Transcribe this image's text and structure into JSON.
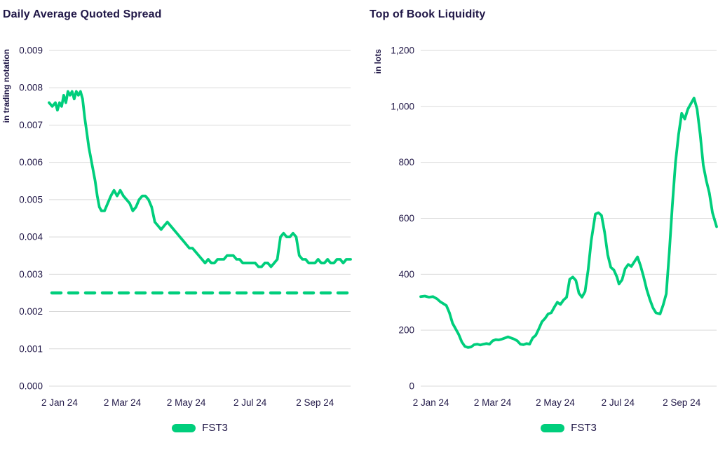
{
  "colors": {
    "series": "#00CE7C",
    "title": "#201747",
    "axis_text": "#201747",
    "grid": "#D9D9D9",
    "background": "#FFFFFF"
  },
  "chart_data": [
    {
      "type": "line",
      "title": "Daily Average Quoted Spread",
      "ylabel": "in trading notation",
      "xlabel": "",
      "legend_label": "FST3",
      "legend_position": "bottom",
      "grid": true,
      "ylim": [
        0,
        0.009
      ],
      "yticks": [
        0,
        0.001,
        0.002,
        0.003,
        0.004,
        0.005,
        0.006,
        0.007,
        0.008,
        0.009
      ],
      "ytick_labels": [
        "0.000",
        "0.001",
        "0.002",
        "0.003",
        "0.004",
        "0.005",
        "0.006",
        "0.007",
        "0.008",
        "0.009"
      ],
      "xlim": [
        0,
        288
      ],
      "xticks": [
        10,
        70,
        131,
        192,
        254
      ],
      "xtick_labels": [
        "2 Jan 24",
        "2 Mar 24",
        "2 May 24",
        "2 Jul 24",
        "2 Sep 24"
      ],
      "reference_line": {
        "value": 0.0025,
        "style": "dashed"
      },
      "series": [
        {
          "name": "FST3",
          "points": [
            [
              0,
              0.0076
            ],
            [
              3,
              0.0075
            ],
            [
              6,
              0.0076
            ],
            [
              8,
              0.0074
            ],
            [
              10,
              0.0076
            ],
            [
              12,
              0.0075
            ],
            [
              14,
              0.0078
            ],
            [
              16,
              0.0076
            ],
            [
              18,
              0.0079
            ],
            [
              20,
              0.0078
            ],
            [
              22,
              0.0079
            ],
            [
              24,
              0.0077
            ],
            [
              26,
              0.0079
            ],
            [
              28,
              0.0078
            ],
            [
              30,
              0.0079
            ],
            [
              32,
              0.0077
            ],
            [
              34,
              0.0072
            ],
            [
              36,
              0.0068
            ],
            [
              38,
              0.0064
            ],
            [
              40,
              0.0061
            ],
            [
              42,
              0.0058
            ],
            [
              44,
              0.0055
            ],
            [
              46,
              0.0051
            ],
            [
              48,
              0.0048
            ],
            [
              50,
              0.0047
            ],
            [
              53,
              0.0047
            ],
            [
              56,
              0.0049
            ],
            [
              59,
              0.0051
            ],
            [
              62,
              0.00525
            ],
            [
              65,
              0.0051
            ],
            [
              68,
              0.00525
            ],
            [
              71,
              0.0051
            ],
            [
              74,
              0.005
            ],
            [
              77,
              0.0049
            ],
            [
              80,
              0.0047
            ],
            [
              83,
              0.0048
            ],
            [
              86,
              0.005
            ],
            [
              89,
              0.0051
            ],
            [
              92,
              0.0051
            ],
            [
              95,
              0.005
            ],
            [
              98,
              0.0048
            ],
            [
              101,
              0.0044
            ],
            [
              104,
              0.0043
            ],
            [
              107,
              0.0042
            ],
            [
              110,
              0.0043
            ],
            [
              113,
              0.0044
            ],
            [
              116,
              0.0043
            ],
            [
              119,
              0.0042
            ],
            [
              122,
              0.0041
            ],
            [
              125,
              0.004
            ],
            [
              128,
              0.0039
            ],
            [
              131,
              0.0038
            ],
            [
              134,
              0.0037
            ],
            [
              137,
              0.0037
            ],
            [
              140,
              0.0036
            ],
            [
              143,
              0.0035
            ],
            [
              146,
              0.0034
            ],
            [
              149,
              0.0033
            ],
            [
              152,
              0.0034
            ],
            [
              155,
              0.0033
            ],
            [
              158,
              0.0033
            ],
            [
              161,
              0.0034
            ],
            [
              164,
              0.0034
            ],
            [
              167,
              0.0034
            ],
            [
              170,
              0.0035
            ],
            [
              173,
              0.0035
            ],
            [
              176,
              0.0035
            ],
            [
              179,
              0.0034
            ],
            [
              182,
              0.0034
            ],
            [
              185,
              0.0033
            ],
            [
              188,
              0.0033
            ],
            [
              191,
              0.0033
            ],
            [
              194,
              0.0033
            ],
            [
              197,
              0.0033
            ],
            [
              200,
              0.0032
            ],
            [
              203,
              0.0032
            ],
            [
              206,
              0.0033
            ],
            [
              209,
              0.0033
            ],
            [
              212,
              0.0032
            ],
            [
              215,
              0.0033
            ],
            [
              218,
              0.0034
            ],
            [
              221,
              0.004
            ],
            [
              224,
              0.0041
            ],
            [
              227,
              0.004
            ],
            [
              230,
              0.004
            ],
            [
              233,
              0.0041
            ],
            [
              236,
              0.004
            ],
            [
              239,
              0.0035
            ],
            [
              242,
              0.0034
            ],
            [
              245,
              0.0034
            ],
            [
              248,
              0.0033
            ],
            [
              251,
              0.0033
            ],
            [
              254,
              0.0033
            ],
            [
              257,
              0.0034
            ],
            [
              260,
              0.0033
            ],
            [
              263,
              0.0033
            ],
            [
              266,
              0.0034
            ],
            [
              269,
              0.0033
            ],
            [
              272,
              0.0033
            ],
            [
              275,
              0.0034
            ],
            [
              278,
              0.0034
            ],
            [
              281,
              0.0033
            ],
            [
              284,
              0.0034
            ],
            [
              288,
              0.0034
            ]
          ]
        }
      ]
    },
    {
      "type": "line",
      "title": "Top of Book Liquidity",
      "ylabel": "in lots",
      "xlabel": "",
      "legend_label": "FST3",
      "legend_position": "bottom",
      "grid": true,
      "ylim": [
        0,
        1200
      ],
      "yticks": [
        0,
        200,
        400,
        600,
        800,
        1000,
        1200
      ],
      "ytick_labels": [
        "0",
        "200",
        "400",
        "600",
        "800",
        "1,000",
        "1,200"
      ],
      "xlim": [
        0,
        288
      ],
      "xticks": [
        10,
        70,
        131,
        192,
        254
      ],
      "xtick_labels": [
        "2 Jan 24",
        "2 Mar 24",
        "2 May 24",
        "2 Jul 24",
        "2 Sep 24"
      ],
      "series": [
        {
          "name": "FST3",
          "points": [
            [
              0,
              320
            ],
            [
              4,
              322
            ],
            [
              8,
              318
            ],
            [
              12,
              320
            ],
            [
              16,
              312
            ],
            [
              19,
              302
            ],
            [
              22,
              295
            ],
            [
              25,
              288
            ],
            [
              28,
              262
            ],
            [
              31,
              225
            ],
            [
              34,
              205
            ],
            [
              37,
              185
            ],
            [
              40,
              158
            ],
            [
              43,
              142
            ],
            [
              46,
              138
            ],
            [
              49,
              140
            ],
            [
              52,
              148
            ],
            [
              55,
              150
            ],
            [
              58,
              147
            ],
            [
              61,
              150
            ],
            [
              64,
              152
            ],
            [
              67,
              150
            ],
            [
              70,
              162
            ],
            [
              73,
              166
            ],
            [
              76,
              165
            ],
            [
              79,
              168
            ],
            [
              82,
              172
            ],
            [
              85,
              176
            ],
            [
              88,
              172
            ],
            [
              91,
              168
            ],
            [
              94,
              162
            ],
            [
              97,
              150
            ],
            [
              100,
              148
            ],
            [
              103,
              152
            ],
            [
              106,
              150
            ],
            [
              109,
              172
            ],
            [
              112,
              182
            ],
            [
              115,
              205
            ],
            [
              118,
              230
            ],
            [
              121,
              242
            ],
            [
              124,
              258
            ],
            [
              127,
              262
            ],
            [
              130,
              282
            ],
            [
              133,
              300
            ],
            [
              136,
              292
            ],
            [
              139,
              308
            ],
            [
              142,
              318
            ],
            [
              145,
              382
            ],
            [
              148,
              390
            ],
            [
              151,
              378
            ],
            [
              154,
              332
            ],
            [
              157,
              318
            ],
            [
              160,
              338
            ],
            [
              163,
              415
            ],
            [
              166,
              520
            ],
            [
              170,
              615
            ],
            [
              173,
              620
            ],
            [
              176,
              610
            ],
            [
              179,
              550
            ],
            [
              182,
              470
            ],
            [
              185,
              425
            ],
            [
              188,
              415
            ],
            [
              191,
              390
            ],
            [
              193,
              365
            ],
            [
              196,
              380
            ],
            [
              199,
              420
            ],
            [
              202,
              435
            ],
            [
              205,
              428
            ],
            [
              208,
              445
            ],
            [
              211,
              462
            ],
            [
              214,
              430
            ],
            [
              217,
              390
            ],
            [
              220,
              345
            ],
            [
              223,
              310
            ],
            [
              226,
              280
            ],
            [
              229,
              262
            ],
            [
              233,
              258
            ],
            [
              236,
              290
            ],
            [
              239,
              330
            ],
            [
              242,
              480
            ],
            [
              245,
              650
            ],
            [
              248,
              800
            ],
            [
              251,
              900
            ],
            [
              254,
              975
            ],
            [
              257,
              955
            ],
            [
              260,
              990
            ],
            [
              263,
              1010
            ],
            [
              266,
              1030
            ],
            [
              269,
              990
            ],
            [
              272,
              900
            ],
            [
              275,
              790
            ],
            [
              278,
              735
            ],
            [
              281,
              690
            ],
            [
              284,
              620
            ],
            [
              288,
              570
            ]
          ]
        }
      ]
    }
  ]
}
